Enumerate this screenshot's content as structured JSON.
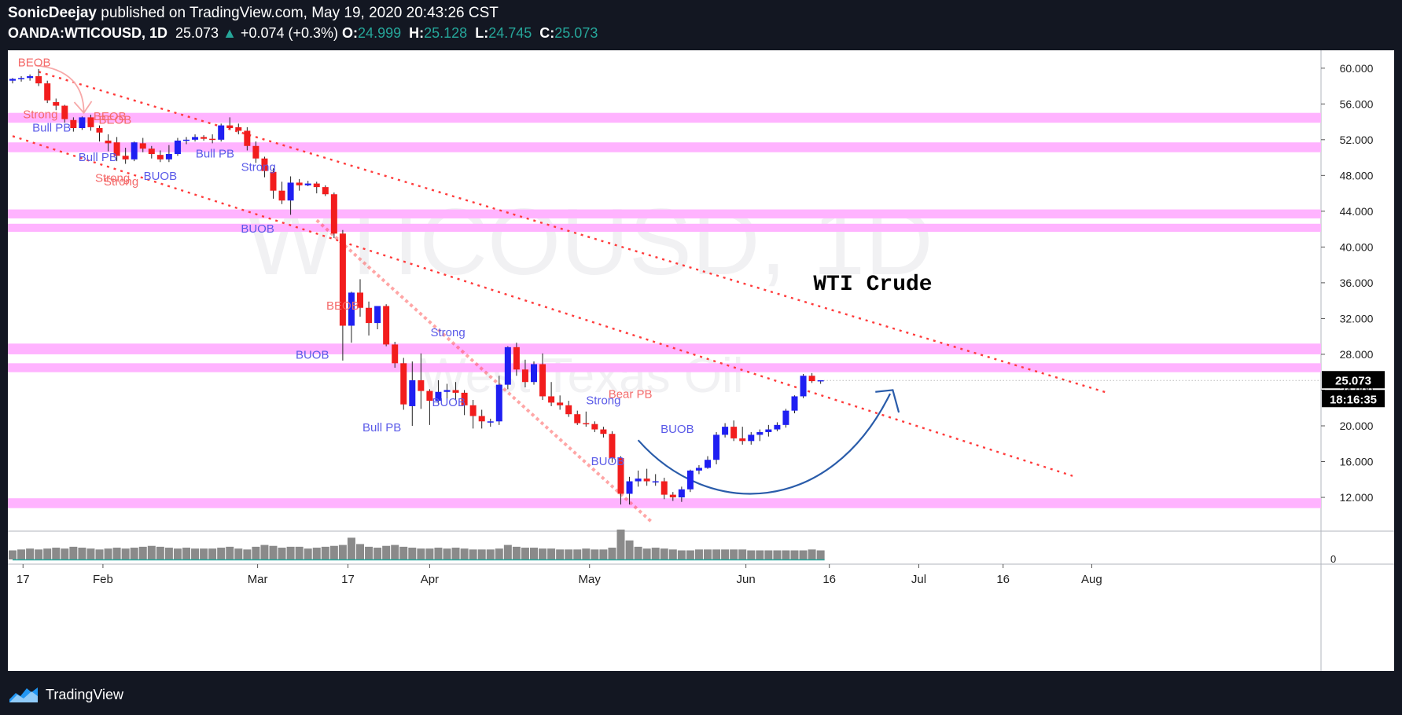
{
  "header": {
    "author": "SonicDeejay",
    "published": "published on TradingView.com, May 19, 2020 20:43:26 CST",
    "symbol": "OANDA:WTICOUSD, 1D",
    "last": "25.073",
    "change": "+0.074 (+0.3%)",
    "open_label": "O:",
    "open": "24.999",
    "high_label": "H:",
    "high": "25.128",
    "low_label": "L:",
    "low": "24.745",
    "close_label": "C:",
    "close": "25.073"
  },
  "footer": {
    "brand": "TradingView"
  },
  "colors": {
    "up": "#1f1ff2",
    "down": "#f21d1d",
    "zone": "#ffb3ff",
    "trend": "#ff3b3b",
    "arrow": "#2a5caa",
    "volume": "#8a8a8a"
  },
  "chart_data": {
    "type": "candlestick",
    "watermark": "WTICOUSD, 1D",
    "watermark_sub": "West Texas Oil",
    "title_annotation": "WTI Crude",
    "price_label": "25.073",
    "countdown": "18:16:35",
    "ylim": [
      8.4,
      62.0
    ],
    "y_ticks": [
      "60.000",
      "56.000",
      "52.000",
      "48.000",
      "44.000",
      "40.000",
      "36.000",
      "32.000",
      "28.000",
      "24.000",
      "20.000",
      "16.000",
      "12.000"
    ],
    "x_ticks": [
      "17",
      "Feb",
      "Mar",
      "17",
      "Apr",
      "May",
      "Jun",
      "16",
      "Jul",
      "16",
      "Aug"
    ],
    "volume_tick": "0",
    "candles": [
      [
        58.6,
        58.9,
        58.3,
        58.8
      ],
      [
        58.8,
        59.1,
        58.5,
        58.9
      ],
      [
        58.9,
        59.3,
        58.6,
        59.1
      ],
      [
        59.1,
        59.9,
        58.0,
        58.3
      ],
      [
        58.3,
        58.6,
        56.1,
        56.4
      ],
      [
        56.2,
        56.6,
        55.3,
        55.8
      ],
      [
        55.8,
        55.9,
        53.9,
        54.3
      ],
      [
        54.2,
        54.5,
        52.9,
        53.3
      ],
      [
        53.3,
        54.6,
        53.1,
        54.5
      ],
      [
        54.5,
        54.8,
        53.0,
        53.4
      ],
      [
        53.3,
        53.6,
        51.8,
        52.8
      ],
      [
        51.9,
        52.6,
        50.7,
        51.6
      ],
      [
        51.7,
        52.3,
        49.6,
        50.2
      ],
      [
        50.2,
        51.1,
        49.3,
        49.8
      ],
      [
        49.8,
        51.8,
        49.6,
        51.7
      ],
      [
        51.6,
        52.2,
        50.6,
        51.0
      ],
      [
        51.0,
        51.3,
        49.9,
        50.4
      ],
      [
        50.3,
        50.8,
        49.5,
        49.8
      ],
      [
        49.8,
        51.4,
        49.5,
        50.4
      ],
      [
        50.4,
        52.2,
        50.2,
        51.9
      ],
      [
        51.9,
        52.3,
        51.5,
        52.0
      ],
      [
        52.0,
        52.6,
        51.8,
        52.3
      ],
      [
        52.3,
        52.5,
        51.9,
        52.1
      ],
      [
        52.1,
        52.6,
        51.6,
        52.0
      ],
      [
        52.0,
        53.8,
        51.8,
        53.6
      ],
      [
        53.6,
        54.5,
        53.2,
        53.3
      ],
      [
        53.4,
        53.8,
        52.6,
        53.0
      ],
      [
        53.0,
        53.4,
        50.8,
        51.3
      ],
      [
        51.3,
        51.8,
        49.4,
        49.9
      ],
      [
        49.9,
        50.1,
        47.8,
        48.5
      ],
      [
        48.4,
        48.8,
        45.4,
        46.3
      ],
      [
        46.3,
        47.3,
        44.8,
        45.2
      ],
      [
        45.2,
        47.9,
        43.6,
        47.2
      ],
      [
        47.2,
        47.6,
        46.3,
        46.9
      ],
      [
        46.9,
        47.4,
        46.8,
        47.1
      ],
      [
        47.1,
        47.3,
        46.0,
        46.7
      ],
      [
        46.7,
        46.9,
        45.7,
        45.9
      ],
      [
        45.9,
        46.1,
        41.0,
        41.5
      ],
      [
        41.5,
        41.9,
        27.3,
        31.2
      ],
      [
        31.2,
        35.0,
        29.3,
        34.9
      ],
      [
        34.9,
        36.4,
        32.2,
        33.2
      ],
      [
        33.2,
        33.9,
        30.1,
        31.5
      ],
      [
        31.5,
        33.4,
        30.8,
        33.4
      ],
      [
        33.4,
        33.6,
        28.9,
        29.1
      ],
      [
        29.1,
        29.4,
        26.5,
        27.0
      ],
      [
        27.0,
        27.6,
        21.8,
        22.4
      ],
      [
        22.2,
        27.2,
        20.0,
        25.1
      ],
      [
        25.1,
        28.1,
        21.9,
        23.9
      ],
      [
        23.9,
        24.1,
        20.1,
        22.8
      ],
      [
        22.8,
        25.1,
        22.4,
        23.8
      ],
      [
        23.8,
        24.7,
        22.6,
        24.0
      ],
      [
        24.0,
        24.9,
        22.9,
        23.7
      ],
      [
        23.7,
        24.0,
        21.2,
        22.3
      ],
      [
        22.3,
        22.9,
        19.7,
        21.1
      ],
      [
        21.1,
        21.8,
        19.7,
        20.5
      ],
      [
        20.5,
        20.8,
        19.9,
        20.5
      ],
      [
        20.5,
        25.6,
        20.1,
        24.6
      ],
      [
        24.6,
        28.9,
        24.1,
        28.8
      ],
      [
        28.8,
        29.3,
        25.6,
        26.3
      ],
      [
        26.3,
        27.4,
        24.3,
        24.9
      ],
      [
        24.9,
        27.2,
        24.6,
        26.9
      ],
      [
        26.9,
        28.1,
        22.9,
        23.3
      ],
      [
        23.3,
        24.9,
        22.2,
        22.6
      ],
      [
        22.6,
        23.4,
        21.8,
        22.3
      ],
      [
        22.3,
        22.8,
        21.0,
        21.3
      ],
      [
        21.3,
        21.7,
        20.1,
        20.3
      ],
      [
        20.3,
        21.6,
        19.9,
        20.2
      ],
      [
        20.2,
        20.5,
        19.3,
        19.6
      ],
      [
        19.6,
        19.9,
        18.7,
        19.1
      ],
      [
        19.1,
        19.4,
        15.9,
        16.4
      ],
      [
        16.4,
        16.6,
        11.2,
        12.4
      ],
      [
        12.4,
        14.3,
        11.2,
        13.8
      ],
      [
        13.8,
        15.0,
        13.2,
        14.1
      ],
      [
        14.1,
        15.2,
        13.3,
        13.8
      ],
      [
        13.8,
        14.6,
        13.3,
        13.8
      ],
      [
        13.8,
        14.2,
        11.8,
        12.3
      ],
      [
        12.3,
        12.6,
        11.6,
        12.0
      ],
      [
        12.0,
        13.2,
        11.5,
        12.9
      ],
      [
        12.9,
        15.1,
        12.6,
        15.0
      ],
      [
        15.0,
        15.6,
        14.6,
        15.3
      ],
      [
        15.3,
        16.6,
        15.2,
        16.2
      ],
      [
        16.2,
        19.3,
        15.7,
        19.0
      ],
      [
        19.0,
        20.3,
        18.7,
        19.9
      ],
      [
        19.9,
        20.6,
        18.3,
        18.6
      ],
      [
        18.6,
        19.9,
        17.9,
        18.3
      ],
      [
        18.3,
        19.3,
        17.9,
        19.0
      ],
      [
        19.0,
        19.6,
        18.3,
        19.3
      ],
      [
        19.3,
        20.1,
        18.8,
        19.6
      ],
      [
        19.6,
        20.4,
        19.4,
        20.1
      ],
      [
        20.1,
        21.9,
        19.8,
        21.7
      ],
      [
        21.7,
        23.4,
        21.4,
        23.3
      ],
      [
        23.3,
        25.8,
        23.1,
        25.6
      ],
      [
        25.6,
        25.9,
        24.8,
        25.0
      ],
      [
        25.0,
        25.1,
        24.7,
        25.1
      ]
    ],
    "volume": [
      10,
      11,
      12,
      11,
      12,
      13,
      12,
      14,
      13,
      12,
      11,
      12,
      13,
      12,
      13,
      14,
      15,
      14,
      13,
      12,
      13,
      12,
      12,
      12,
      13,
      14,
      12,
      11,
      14,
      16,
      15,
      13,
      14,
      14,
      12,
      13,
      14,
      15,
      16,
      24,
      17,
      14,
      13,
      15,
      16,
      14,
      13,
      12,
      12,
      13,
      12,
      13,
      12,
      11,
      11,
      11,
      12,
      16,
      14,
      13,
      13,
      12,
      12,
      11,
      11,
      11,
      12,
      11,
      11,
      13,
      33,
      21,
      14,
      12,
      13,
      12,
      11,
      10,
      10,
      11,
      11,
      11,
      11,
      11,
      11,
      10,
      10,
      10,
      10,
      10,
      10,
      10,
      11,
      10
    ],
    "zones": [
      [
        53.9,
        55.0
      ],
      [
        50.6,
        51.7
      ],
      [
        43.2,
        44.2
      ],
      [
        41.7,
        42.6
      ],
      [
        28.0,
        29.2
      ],
      [
        26.0,
        27.0
      ],
      [
        10.8,
        11.9
      ]
    ],
    "annotations": [
      {
        "text": "BEOB",
        "kind": "bear"
      },
      {
        "text": "Strong",
        "kind": "bear"
      },
      {
        "text": "Bull PB",
        "kind": "bull"
      },
      {
        "text": "BEOB",
        "kind": "bear"
      },
      {
        "text": "BEOB",
        "kind": "bear"
      },
      {
        "text": "Bull PB",
        "kind": "bull"
      },
      {
        "text": "Strong",
        "kind": "bear"
      },
      {
        "text": "Strong",
        "kind": "bear"
      },
      {
        "text": "BUOB",
        "kind": "bull"
      },
      {
        "text": "Bull PB",
        "kind": "bull"
      },
      {
        "text": "Strong",
        "kind": "bull"
      },
      {
        "text": "BUOB",
        "kind": "bull"
      },
      {
        "text": "BUOB",
        "kind": "bull"
      },
      {
        "text": "BEOB",
        "kind": "bear"
      },
      {
        "text": "Bull PB",
        "kind": "bull"
      },
      {
        "text": "Strong",
        "kind": "bull"
      },
      {
        "text": "BUOB",
        "kind": "bull"
      },
      {
        "text": "Strong",
        "kind": "bull"
      },
      {
        "text": "Bear PB",
        "kind": "bear"
      },
      {
        "text": "BUOB",
        "kind": "bull"
      },
      {
        "text": "BUOB",
        "kind": "bull"
      }
    ]
  }
}
